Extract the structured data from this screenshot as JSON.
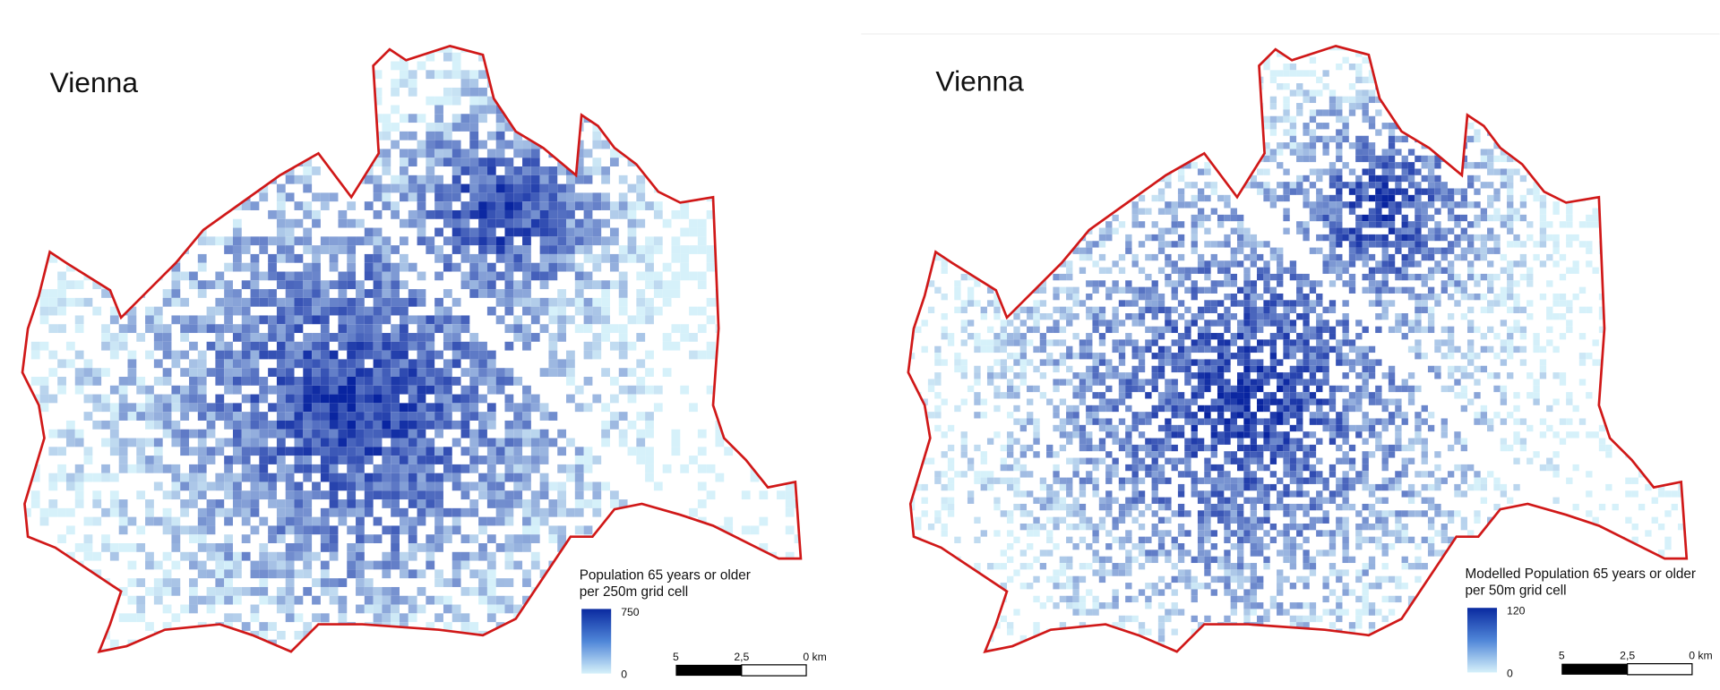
{
  "maps": [
    {
      "title": "Vienna",
      "legend": {
        "title_lines": [
          "Population 65 years or older",
          "per 250m grid cell"
        ],
        "max": "750",
        "min": "0"
      },
      "scale": {
        "labels": [
          "5",
          "2,5",
          "0 km"
        ]
      }
    },
    {
      "title": "Vienna",
      "legend": {
        "title_lines": [
          "Modelled Population 65 years or older",
          "per 50m grid cell"
        ],
        "max": "120",
        "min": "0"
      },
      "scale": {
        "labels": [
          "5",
          "2,5",
          "0 km"
        ]
      }
    }
  ]
}
